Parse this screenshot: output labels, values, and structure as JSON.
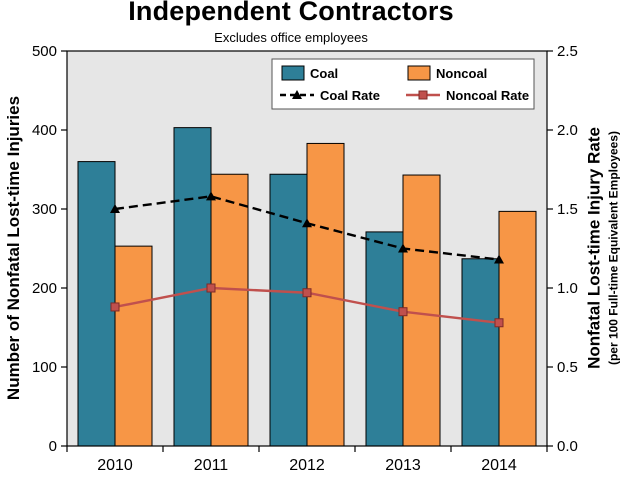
{
  "chart": {
    "title": "Independent Contractors",
    "subtitle": "Excludes office employees",
    "left_axis_label": "Number of Nonfatal Lost-time Injuries",
    "right_axis_label": "Nonfatal Lost-time Injury Rate",
    "right_axis_sublabel": "(per 100 Full-time Equivalent Employees)"
  },
  "chart_data": {
    "type": "bar+line",
    "categories": [
      "2010",
      "2011",
      "2012",
      "2013",
      "2014"
    ],
    "bar_series": [
      {
        "name": "Coal",
        "color": "#2E7F98",
        "values": [
          360,
          403,
          344,
          271,
          237
        ]
      },
      {
        "name": "Noncoal",
        "color": "#F79646",
        "values": [
          253,
          344,
          383,
          343,
          297
        ]
      }
    ],
    "line_series": [
      {
        "name": "Coal Rate",
        "color": "#000000",
        "dash": "9,5",
        "marker": "triangle",
        "values": [
          1.5,
          1.58,
          1.41,
          1.25,
          1.18
        ]
      },
      {
        "name": "Noncoal Rate",
        "color": "#C0504D",
        "dash": "",
        "marker": "square",
        "values": [
          0.88,
          1.0,
          0.97,
          0.85,
          0.78
        ]
      }
    ],
    "left_axis": {
      "min": 0,
      "max": 500,
      "ticks": [
        0,
        100,
        200,
        300,
        400,
        500
      ]
    },
    "right_axis": {
      "min": 0,
      "max": 2.5,
      "ticks": [
        "0.0",
        "0.5",
        "1.0",
        "1.5",
        "2.0",
        "2.5"
      ]
    },
    "plot_bg": "#E6E6E6",
    "grid": false,
    "legend_position": "top-center"
  }
}
